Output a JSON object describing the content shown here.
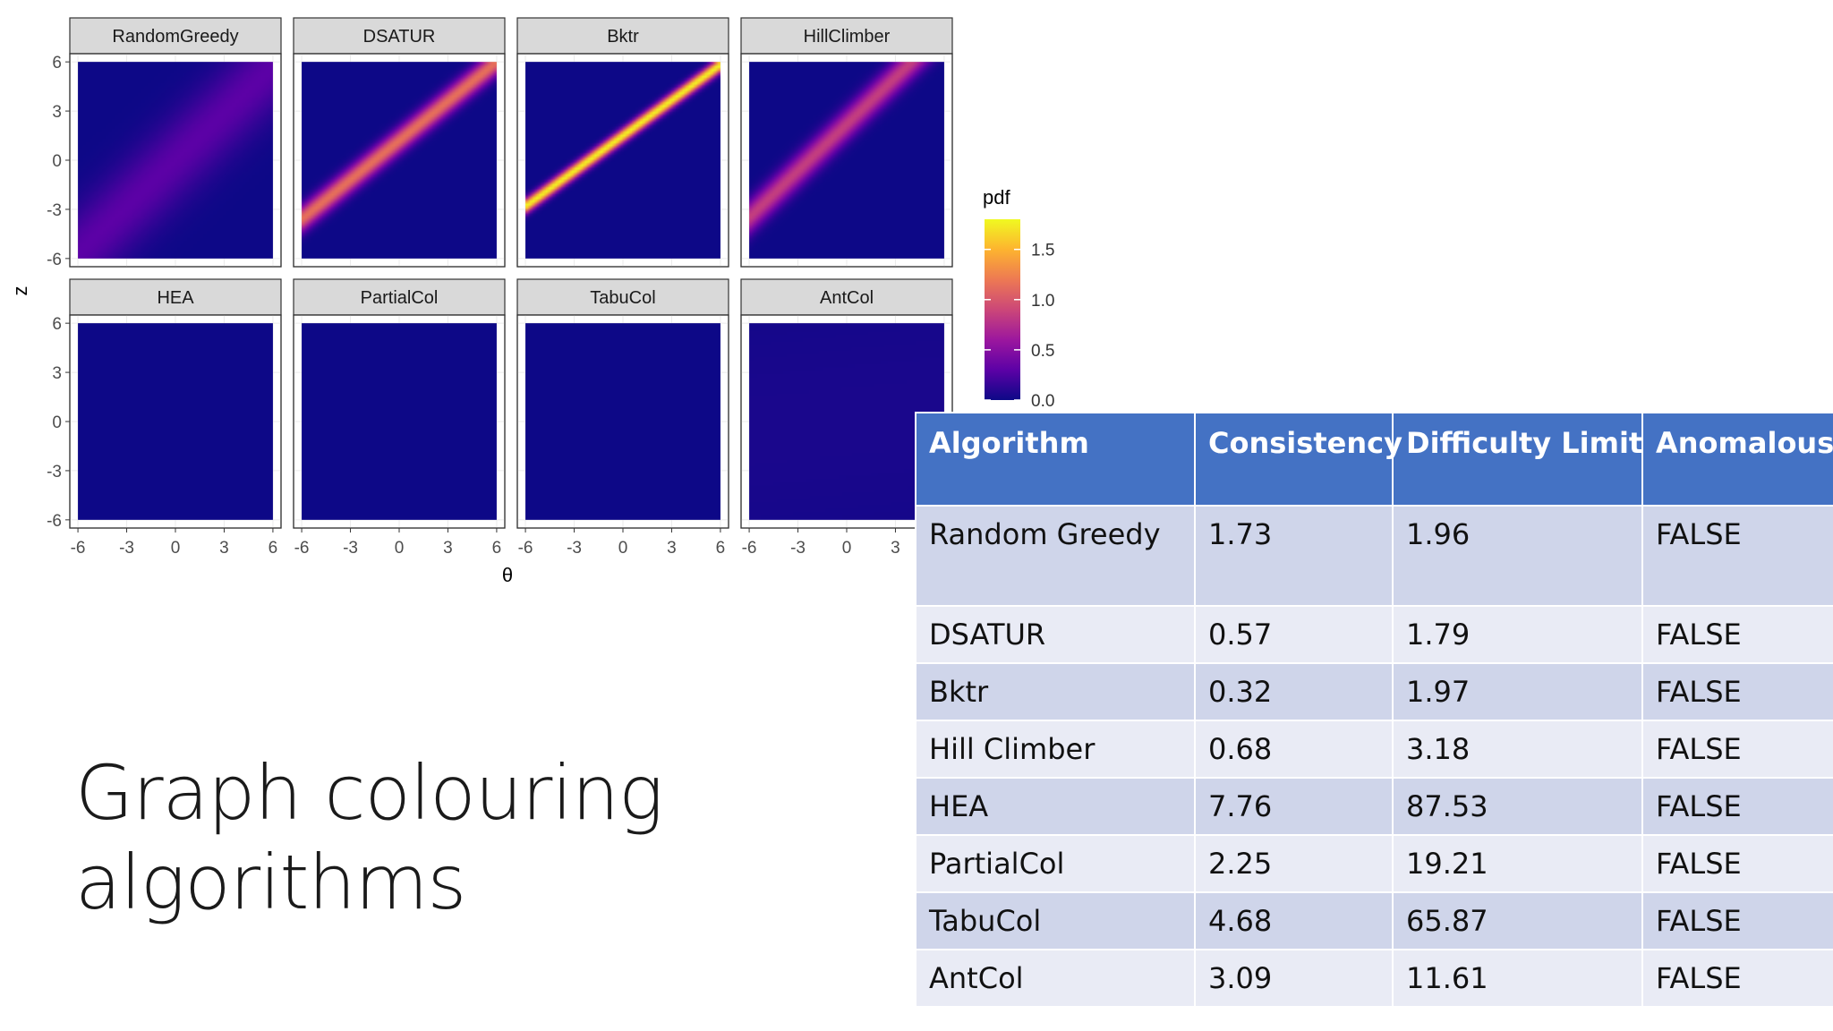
{
  "slide": {
    "title": "Graph colouring algorithms"
  },
  "chart_data": {
    "type": "heatmap",
    "layout": "facet-grid 2x4",
    "xlabel": "θ",
    "ylabel": "z",
    "xlim": [
      -6.5,
      6.5
    ],
    "ylim": [
      -6.5,
      6.5
    ],
    "x_ticks": [
      -6,
      -3,
      0,
      3,
      6
    ],
    "y_ticks": [
      -6,
      -3,
      0,
      3,
      6
    ],
    "x_tick_labels": [
      "-6",
      "-3",
      "0",
      "3",
      "6"
    ],
    "y_tick_labels": [
      "-6",
      "-3",
      "0",
      "3",
      "6"
    ],
    "grid": true,
    "legend": {
      "title": "pdf",
      "placement": "right",
      "ticks": [
        0.0,
        0.5,
        1.0,
        1.5
      ],
      "tick_labels": [
        "0.0",
        "0.5",
        "1.0",
        "1.5"
      ],
      "range": [
        0,
        1.8
      ],
      "colors": [
        "#0d0887",
        "#5c01a6",
        "#9c179e",
        "#cc4778",
        "#ed7953",
        "#fdb42f",
        "#f0f921"
      ]
    },
    "panels": [
      {
        "name": "RandomGreedy",
        "peak": 0.3,
        "sharpness": 0.5,
        "slope": 0.95,
        "intercept": 0.0
      },
      {
        "name": "DSATUR",
        "peak": 1.15,
        "sharpness": 1.8,
        "slope": 0.8,
        "intercept": 1.2
      },
      {
        "name": "Bktr",
        "peak": 1.8,
        "sharpness": 3.2,
        "slope": 0.72,
        "intercept": 1.5
      },
      {
        "name": "HillClimber",
        "peak": 0.85,
        "sharpness": 1.4,
        "slope": 0.95,
        "intercept": 2.2
      },
      {
        "name": "HEA",
        "peak": 0.0,
        "sharpness": 1.0,
        "slope": 1.0,
        "intercept": 0.0
      },
      {
        "name": "PartialCol",
        "peak": 0.0,
        "sharpness": 1.0,
        "slope": 1.0,
        "intercept": 0.0
      },
      {
        "name": "TabuCol",
        "peak": 0.0,
        "sharpness": 1.0,
        "slope": 1.0,
        "intercept": 0.0
      },
      {
        "name": "AntCol",
        "peak": 0.05,
        "sharpness": 0.15,
        "slope": 0.1,
        "intercept": 0.0
      }
    ]
  },
  "table": {
    "headers": [
      "Algorithm",
      "Consistency",
      "Difficulty Limit",
      "Anomalous"
    ],
    "rows": [
      [
        "Random Greedy",
        "1.73",
        "1.96",
        "FALSE"
      ],
      [
        "DSATUR",
        "0.57",
        "1.79",
        "FALSE"
      ],
      [
        "Bktr",
        "0.32",
        "1.97",
        "FALSE"
      ],
      [
        "Hill Climber",
        "0.68",
        "3.18",
        "FALSE"
      ],
      [
        "HEA",
        "7.76",
        "87.53",
        "FALSE"
      ],
      [
        "PartialCol",
        "2.25",
        "19.21",
        "FALSE"
      ],
      [
        "TabuCol",
        "4.68",
        "65.87",
        "FALSE"
      ],
      [
        "AntCol",
        "3.09",
        "11.61",
        "FALSE"
      ]
    ]
  }
}
